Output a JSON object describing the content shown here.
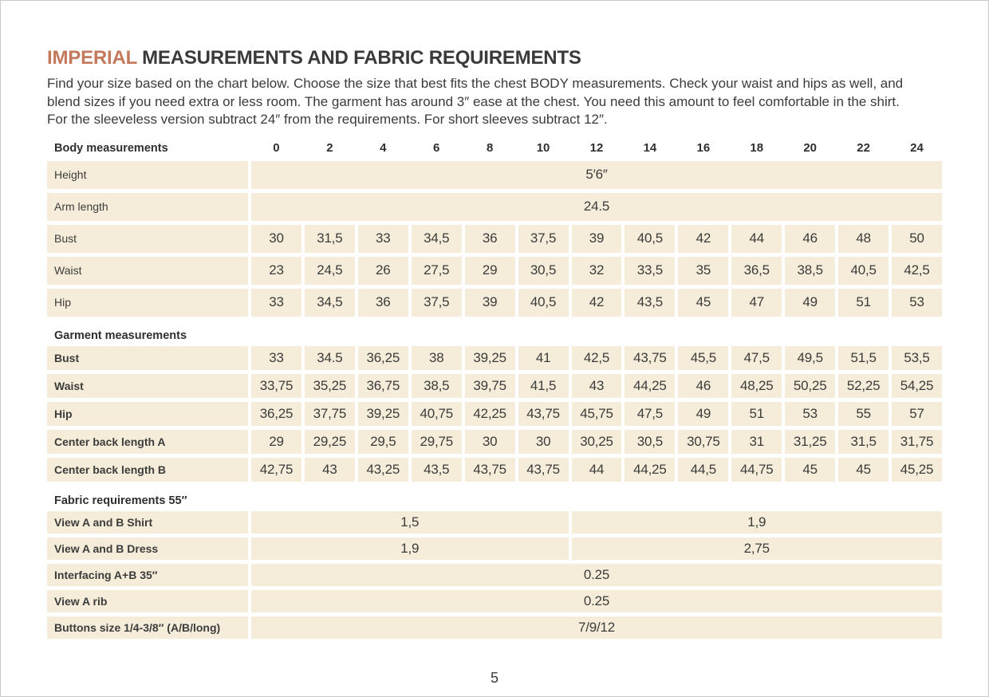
{
  "page": {
    "title_accent": "IMPERIAL",
    "title_rest": " MEASUREMENTS AND FABRIC REQUIREMENTS",
    "intro": "Find your size based on the chart below. Choose the size that best fits the chest BODY measurements.  Check your waist and hips as well, and blend sizes if you need extra or less room. The garment has around 3″ ease at the chest. You need this amount to feel comfortable in the shirt. For the sleeveless version subtract 24″ from the requirements. For short sleeves subtract 12″.",
    "page_number": "5"
  },
  "colors": {
    "accent": "#c4795c",
    "cell_background": "#f5edd9",
    "text": "#3c3c3c"
  },
  "table": {
    "header_label": "Body measurements",
    "sizes": [
      "0",
      "2",
      "4",
      "6",
      "8",
      "10",
      "12",
      "14",
      "16",
      "18",
      "20",
      "22",
      "24"
    ],
    "rows": [
      {
        "kind": "merged",
        "group": "body",
        "bold": false,
        "label": "Height",
        "cells": [
          {
            "span": 13,
            "value": "5′6″"
          }
        ]
      },
      {
        "kind": "merged",
        "group": "body",
        "bold": false,
        "label": "Arm length",
        "cells": [
          {
            "span": 13,
            "value": "24.5"
          }
        ]
      },
      {
        "kind": "values",
        "group": "body",
        "bold": false,
        "label": "Bust",
        "values": [
          "30",
          "31,5",
          "33",
          "34,5",
          "36",
          "37,5",
          "39",
          "40,5",
          "42",
          "44",
          "46",
          "48",
          "50"
        ]
      },
      {
        "kind": "values",
        "group": "body",
        "bold": false,
        "label": "Waist",
        "values": [
          "23",
          "24,5",
          "26",
          "27,5",
          "29",
          "30,5",
          "32",
          "33,5",
          "35",
          "36,5",
          "38,5",
          "40,5",
          "42,5"
        ]
      },
      {
        "kind": "values",
        "group": "body",
        "bold": false,
        "label": "Hip",
        "values": [
          "33",
          "34,5",
          "36",
          "37,5",
          "39",
          "40,5",
          "42",
          "43,5",
          "45",
          "47",
          "49",
          "51",
          "53"
        ]
      },
      {
        "kind": "section",
        "label": "Garment measurements"
      },
      {
        "kind": "values",
        "group": "garment",
        "bold": true,
        "label": "Bust",
        "values": [
          "33",
          "34.5",
          "36,25",
          "38",
          "39,25",
          "41",
          "42,5",
          "43,75",
          "45,5",
          "47,5",
          "49,5",
          "51,5",
          "53,5"
        ]
      },
      {
        "kind": "values",
        "group": "garment",
        "bold": true,
        "label": "Waist",
        "values": [
          "33,75",
          "35,25",
          "36,75",
          "38,5",
          "39,75",
          "41,5",
          "43",
          "44,25",
          "46",
          "48,25",
          "50,25",
          "52,25",
          "54,25"
        ]
      },
      {
        "kind": "values",
        "group": "garment",
        "bold": true,
        "label": "Hip",
        "values": [
          "36,25",
          "37,75",
          "39,25",
          "40,75",
          "42,25",
          "43,75",
          "45,75",
          "47,5",
          "49",
          "51",
          "53",
          "55",
          "57"
        ]
      },
      {
        "kind": "values",
        "group": "garment",
        "bold": true,
        "label": "Center back length A",
        "values": [
          "29",
          "29,25",
          "29,5",
          "29,75",
          "30",
          "30",
          "30,25",
          "30,5",
          "30,75",
          "31",
          "31,25",
          "31,5",
          "31,75"
        ]
      },
      {
        "kind": "values",
        "group": "garment",
        "bold": true,
        "label": "Center back length B",
        "values": [
          "42,75",
          "43",
          "43,25",
          "43,5",
          "43,75",
          "43,75",
          "44",
          "44,25",
          "44,5",
          "44,75",
          "45",
          "45",
          "45,25"
        ]
      },
      {
        "kind": "section",
        "label": "Fabric requirements 55″"
      },
      {
        "kind": "merged",
        "group": "fabric",
        "bold": true,
        "label": "View A and B Shirt",
        "cells": [
          {
            "span": 6,
            "value": "1,5"
          },
          {
            "span": 7,
            "value": "1,9"
          }
        ]
      },
      {
        "kind": "merged",
        "group": "fabric",
        "bold": true,
        "label": "View A and B Dress",
        "cells": [
          {
            "span": 6,
            "value": "1,9"
          },
          {
            "span": 7,
            "value": "2,75"
          }
        ]
      },
      {
        "kind": "merged",
        "group": "fabric",
        "bold": true,
        "label": "Interfacing  A+B 35″",
        "cells": [
          {
            "span": 13,
            "value": "0.25"
          }
        ]
      },
      {
        "kind": "merged",
        "group": "fabric",
        "bold": true,
        "label": "View A rib",
        "cells": [
          {
            "span": 13,
            "value": "0.25"
          }
        ]
      },
      {
        "kind": "merged",
        "group": "fabric",
        "bold": true,
        "label": "Buttons size 1/4-3/8″ (A/B/long)",
        "cells": [
          {
            "span": 13,
            "value": "7/9/12"
          }
        ]
      }
    ]
  }
}
